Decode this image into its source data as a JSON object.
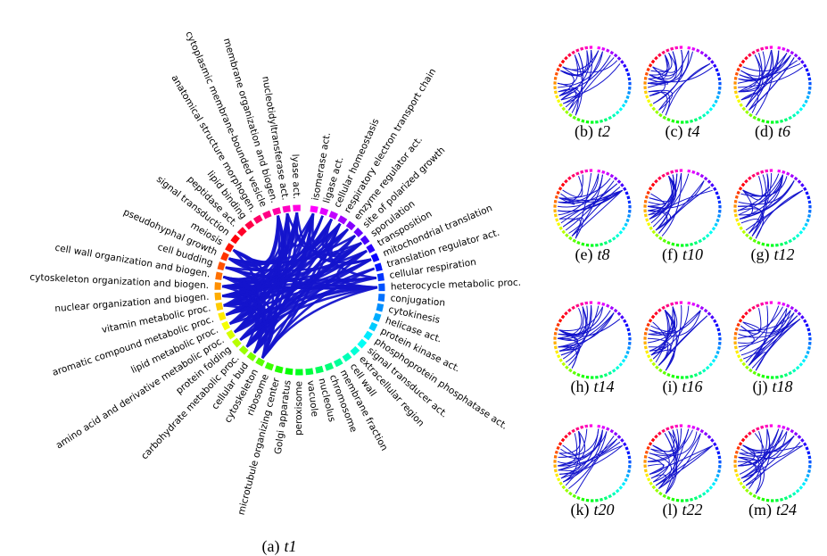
{
  "main_diagram": {
    "caption_letter": "(a)",
    "caption_var": "t1",
    "labels": [
      "isomerase act.",
      "ligase act.",
      "cellular homeostasis",
      "respiratory electron transport chain",
      "enzyme regulator act.",
      "site of polarized growth",
      "sporulation",
      "transposition",
      "mitochondrial translation",
      "translation regulator act.",
      "cellular respiration",
      "heterocycle metabolic proc.",
      "conjugation",
      "cytokinesis",
      "helicase act.",
      "protein kinase act.",
      "phosphoprotein phosphatase act.",
      "signal transducer act.",
      "extracellular region",
      "cell wall",
      "membrane fraction",
      "chromosome",
      "nucleolus",
      "vacuole",
      "peroxisome",
      "Golgi apparatus",
      "microtubule organizing center",
      "ribosome",
      "cytoskeleton",
      "cellular bud",
      "carbohydrate metabolic proc.",
      "protein folding",
      "amino acid and derivative metabolic proc.",
      "lipid metabolic proc.",
      "aromatic compound metabolic proc.",
      "vitamin metabolic proc.",
      "nuclear organization and biogen.",
      "cytoskeleton organization and biogen.",
      "cell wall organization and biogen.",
      "cell budding",
      "pseudohyphal growth",
      "meiosis",
      "signal transduction",
      "peptidase act.",
      "lipid binding",
      "anatomical structure morphogen.",
      "cytoplasmic membrane-bounded vesicle",
      "membrane organization and biogen.",
      "nucleotidyltransferase act.",
      "lyase act."
    ],
    "edge_color": "#1414cc"
  },
  "small_panels": [
    {
      "letter": "(b)",
      "var": "t2"
    },
    {
      "letter": "(c)",
      "var": "t4"
    },
    {
      "letter": "(d)",
      "var": "t6"
    },
    {
      "letter": "(e)",
      "var": "t8"
    },
    {
      "letter": "(f)",
      "var": "t10"
    },
    {
      "letter": "(g)",
      "var": "t12"
    },
    {
      "letter": "(h)",
      "var": "t14"
    },
    {
      "letter": "(i)",
      "var": "t16"
    },
    {
      "letter": "(j)",
      "var": "t18"
    },
    {
      "letter": "(k)",
      "var": "t20"
    },
    {
      "letter": "(l)",
      "var": "t22"
    },
    {
      "letter": "(m)",
      "var": "t24"
    }
  ]
}
